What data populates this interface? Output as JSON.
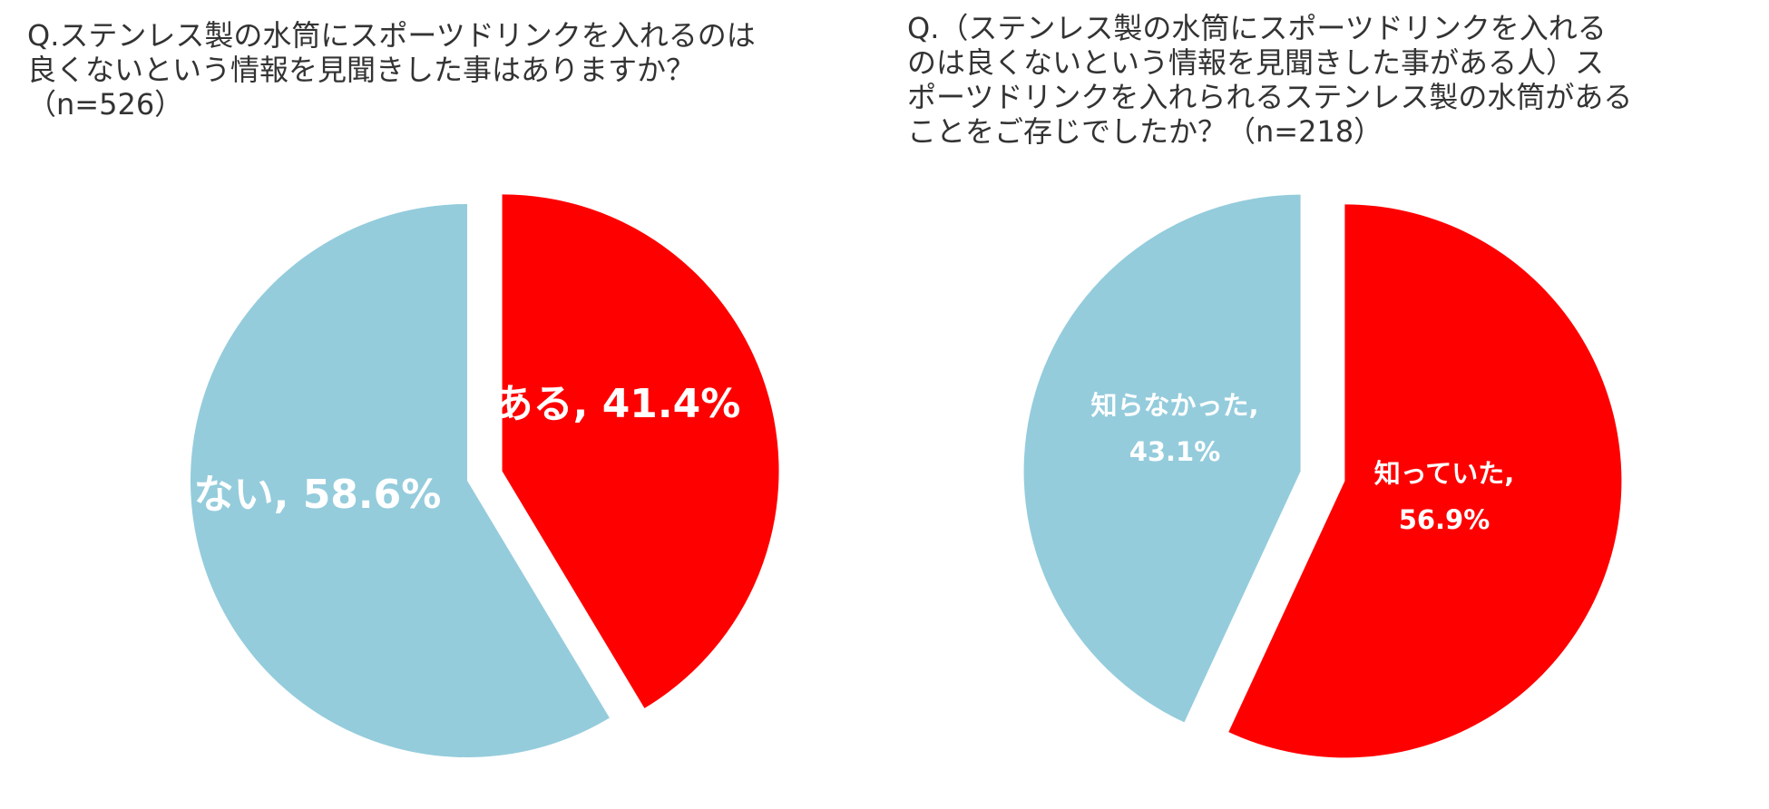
{
  "chart_data": [
    {
      "type": "pie",
      "title": "Q.ステンレス製の水筒にスポーツドリンクを入れるのは\n良くないという情報を見聞きした事はありますか？\n（n=526）",
      "slices": [
        {
          "label": "ある",
          "value": 41.4,
          "display": "ある, 41.4%",
          "color": "#ff0000",
          "exploded": true
        },
        {
          "label": "ない",
          "value": 58.6,
          "display": "ない, 58.6%",
          "color": "#94ccdc",
          "exploded": false
        }
      ]
    },
    {
      "type": "pie",
      "title": "Q.（ステンレス製の水筒にスポーツドリンクを入れる\nのは良くないという情報を見聞きした事がある人）ス\nポーツドリンクを入れられるステンレス製の水筒がある\nことをご存じでしたか？（n=218）",
      "slices": [
        {
          "label": "知っていた",
          "value": 56.9,
          "display_lines": [
            "知っていた,",
            "56.9%"
          ],
          "color": "#ff0000",
          "exploded": true
        },
        {
          "label": "知らなかった",
          "value": 43.1,
          "display_lines": [
            "知らなかった,",
            "43.1%"
          ],
          "color": "#94ccdc",
          "exploded": true
        }
      ]
    }
  ]
}
